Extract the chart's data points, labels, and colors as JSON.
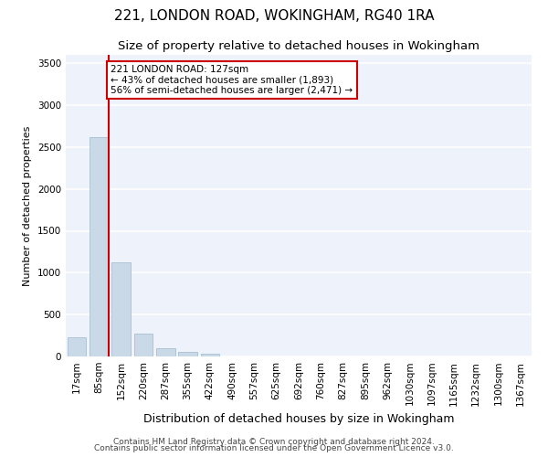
{
  "title1": "221, LONDON ROAD, WOKINGHAM, RG40 1RA",
  "title2": "Size of property relative to detached houses in Wokingham",
  "xlabel": "Distribution of detached houses by size in Wokingham",
  "ylabel": "Number of detached properties",
  "categories": [
    "17sqm",
    "85sqm",
    "152sqm",
    "220sqm",
    "287sqm",
    "355sqm",
    "422sqm",
    "490sqm",
    "557sqm",
    "625sqm",
    "692sqm",
    "760sqm",
    "827sqm",
    "895sqm",
    "962sqm",
    "1030sqm",
    "1097sqm",
    "1165sqm",
    "1232sqm",
    "1300sqm",
    "1367sqm"
  ],
  "values": [
    230,
    2620,
    1120,
    270,
    95,
    50,
    35,
    0,
    0,
    0,
    0,
    0,
    0,
    0,
    0,
    0,
    0,
    0,
    0,
    0,
    0
  ],
  "bar_color": "#c9d9e8",
  "bar_edge_color": "#a0b8cc",
  "property_line_x": 1.43,
  "property_line_color": "#cc0000",
  "annotation_text": "221 LONDON ROAD: 127sqm\n← 43% of detached houses are smaller (1,893)\n56% of semi-detached houses are larger (2,471) →",
  "annotation_box_color": "#cc0000",
  "ylim": [
    0,
    3600
  ],
  "yticks": [
    0,
    500,
    1000,
    1500,
    2000,
    2500,
    3000,
    3500
  ],
  "footer1": "Contains HM Land Registry data © Crown copyright and database right 2024.",
  "footer2": "Contains public sector information licensed under the Open Government Licence v3.0.",
  "background_color": "#eef2fb",
  "grid_color": "#ffffff",
  "title1_fontsize": 11,
  "title2_fontsize": 9.5,
  "xlabel_fontsize": 9,
  "ylabel_fontsize": 8,
  "tick_fontsize": 7.5,
  "annotation_fontsize": 7.5,
  "footer_fontsize": 6.5
}
